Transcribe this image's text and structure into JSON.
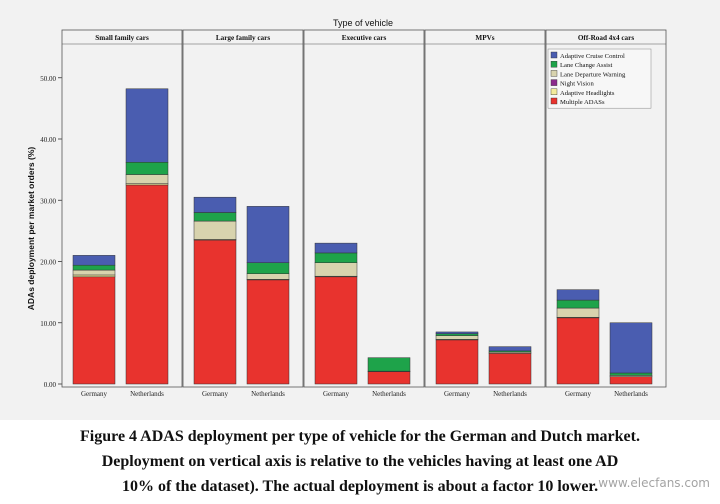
{
  "chart_data": {
    "type": "bar",
    "stacked": true,
    "title": "Type of vehicle",
    "ylabel": "ADAs deployment per market orders (%)",
    "ylim": [
      0,
      55
    ],
    "yticks": [
      "0.00",
      "10.00",
      "20.00",
      "30.00",
      "40.00",
      "50.00"
    ],
    "grid": false,
    "legend_position": "top-right",
    "panels": [
      "Small family cars",
      "Large family cars",
      "Executive cars",
      "MPVs",
      "Off-Road 4x4 cars"
    ],
    "categories": [
      "Germany",
      "Netherlands"
    ],
    "series": [
      {
        "name": "Multiple ADASs",
        "color": "#e8332e",
        "values": [
          [
            17.5,
            32.5
          ],
          [
            23.5,
            17.0
          ],
          [
            17.5,
            2.0
          ],
          [
            7.2,
            5.0
          ],
          [
            10.8,
            1.2
          ]
        ]
      },
      {
        "name": "Adaptive Headlights",
        "color": "#f3eb9c",
        "values": [
          [
            0.3,
            0.2
          ],
          [
            0.1,
            0.1
          ],
          [
            0.1,
            0.1
          ],
          [
            0.1,
            0.0
          ],
          [
            0.1,
            0.0
          ]
        ]
      },
      {
        "name": "Night Vision",
        "color": "#8b2a8c",
        "values": [
          [
            0.0,
            0.0
          ],
          [
            0.0,
            0.0
          ],
          [
            0.0,
            0.0
          ],
          [
            0.0,
            0.0
          ],
          [
            0.0,
            0.0
          ]
        ]
      },
      {
        "name": "Lane Departure Warning",
        "color": "#d8d3ae",
        "values": [
          [
            0.8,
            1.5
          ],
          [
            3.0,
            0.9
          ],
          [
            2.2,
            0.0
          ],
          [
            0.6,
            0.2
          ],
          [
            1.5,
            0.2
          ]
        ]
      },
      {
        "name": "Lane Change Assist",
        "color": "#1ea34a",
        "values": [
          [
            0.8,
            2.0
          ],
          [
            1.4,
            1.8
          ],
          [
            1.6,
            2.2
          ],
          [
            0.3,
            0.2
          ],
          [
            1.3,
            0.4
          ]
        ]
      },
      {
        "name": "Adaptive Cruise Control",
        "color": "#4a5db0",
        "values": [
          [
            1.6,
            12.0
          ],
          [
            2.5,
            9.2
          ],
          [
            1.6,
            0.0
          ],
          [
            0.3,
            0.7
          ],
          [
            1.7,
            8.2
          ]
        ]
      }
    ],
    "legend_order": [
      "Adaptive Cruise Control",
      "Lane Change Assist",
      "Lane Departure Warning",
      "Night Vision",
      "Adaptive Headlights",
      "Multiple ADASs"
    ]
  },
  "caption": {
    "line1": "Figure 4 ADAS deployment per type of vehicle for the German and Dutch market.",
    "line2": "Deployment on vertical axis is relative to the vehicles having at least one AD",
    "line3": "10% of the dataset). The actual deployment is about a factor 10 lower."
  },
  "watermark": "www.elecfans.com"
}
